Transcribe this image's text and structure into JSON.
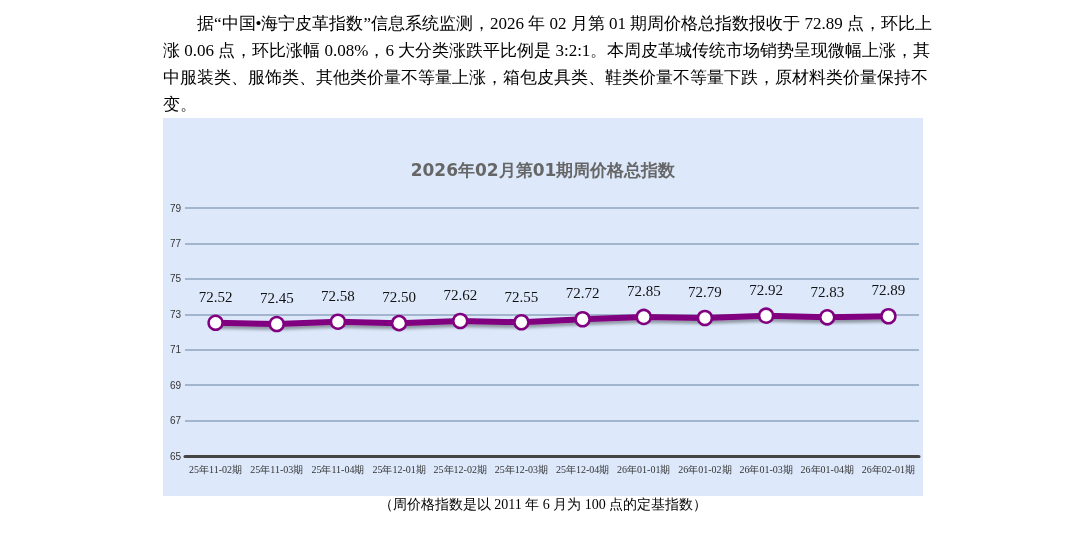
{
  "chart_data": {
    "type": "line",
    "title": "2026年02月第01期周价格总指数",
    "annotations": [
      "据“中国•海宁皮革指数”信息系统监测，2026 年 02 月第 01 期周价格总指数报收于 72.89 点，环比上涨 0.06 点，环比涨幅 0.08%，6 大分类涨跌平比例是 3:2:1。本周皮革城传统市场销势呈现微幅上涨，其中服装类、服饰类、其他类价量不等量上涨，箱包皮具类、鞋类价量不等量下跌，原材料类价量保持不变。",
      "（周价格指数是以 2011 年 6 月为 100 点的定基指数）"
    ],
    "categories": [
      "25年11-02期",
      "25年11-03期",
      "25年11-04期",
      "25年12-01期",
      "25年12-02期",
      "25年12-03期",
      "25年12-04期",
      "26年01-01期",
      "26年01-02期",
      "26年01-03期",
      "26年01-04期",
      "26年02-01期"
    ],
    "series": [
      {
        "color": "#800080",
        "values": [
          72.52,
          72.45,
          72.58,
          72.5,
          72.62,
          72.55,
          72.72,
          72.85,
          72.79,
          72.92,
          72.83,
          72.89
        ],
        "value_labels": [
          "72.52",
          "72.45",
          "72.58",
          "72.50",
          "72.62",
          "72.55",
          "72.72",
          "72.85",
          "72.79",
          "72.92",
          "72.83",
          "72.89"
        ]
      }
    ],
    "ylim": [
      65,
      79
    ],
    "yticks": [
      65,
      67,
      69,
      71,
      73,
      75,
      77,
      79
    ],
    "grid": "y",
    "marker": "circle",
    "line_style": "solid"
  }
}
